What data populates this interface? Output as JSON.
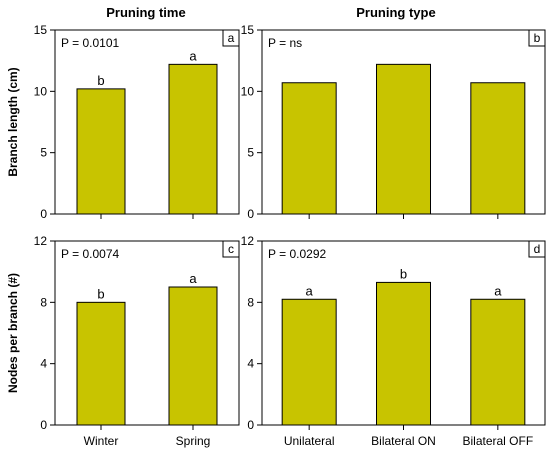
{
  "column_titles": [
    "Pruning time",
    "Pruning type"
  ],
  "colors": {
    "bar_fill": "#c8c400",
    "bar_stroke": "#000000",
    "axis": "#000000"
  },
  "chart_data": [
    {
      "panel": "a",
      "type": "bar",
      "title": "Pruning time",
      "ylabel": "Branch length (cm)",
      "ylim": [
        0,
        15
      ],
      "yticks": [
        0,
        5,
        10,
        15
      ],
      "grid": false,
      "categories": [
        "Winter",
        "Spring"
      ],
      "values": [
        10.2,
        12.2
      ],
      "sig_letters": [
        "b",
        "a"
      ],
      "stat_text": "P = 0.0101"
    },
    {
      "panel": "b",
      "type": "bar",
      "title": "Pruning type",
      "ylabel": "",
      "ylim": [
        0,
        15
      ],
      "yticks": [
        0,
        5,
        10,
        15
      ],
      "grid": false,
      "categories": [
        "Unilateral",
        "Bilateral ON",
        "Bilateral OFF"
      ],
      "values": [
        10.7,
        12.2,
        10.7
      ],
      "sig_letters": [
        "",
        "",
        ""
      ],
      "stat_text": "P = ns"
    },
    {
      "panel": "c",
      "type": "bar",
      "title": "",
      "ylabel": "Nodes per branch (#)",
      "ylim": [
        0,
        12
      ],
      "yticks": [
        0,
        4,
        8,
        12
      ],
      "grid": false,
      "categories": [
        "Winter",
        "Spring"
      ],
      "values": [
        8.0,
        9.0
      ],
      "sig_letters": [
        "b",
        "a"
      ],
      "stat_text": "P = 0.0074"
    },
    {
      "panel": "d",
      "type": "bar",
      "title": "",
      "ylabel": "",
      "ylim": [
        0,
        12
      ],
      "yticks": [
        0,
        4,
        8,
        12
      ],
      "grid": false,
      "categories": [
        "Unilateral",
        "Bilateral ON",
        "Bilateral OFF"
      ],
      "values": [
        8.2,
        9.3,
        8.2
      ],
      "sig_letters": [
        "a",
        "b",
        "a"
      ],
      "stat_text": "P = 0.0292"
    }
  ]
}
